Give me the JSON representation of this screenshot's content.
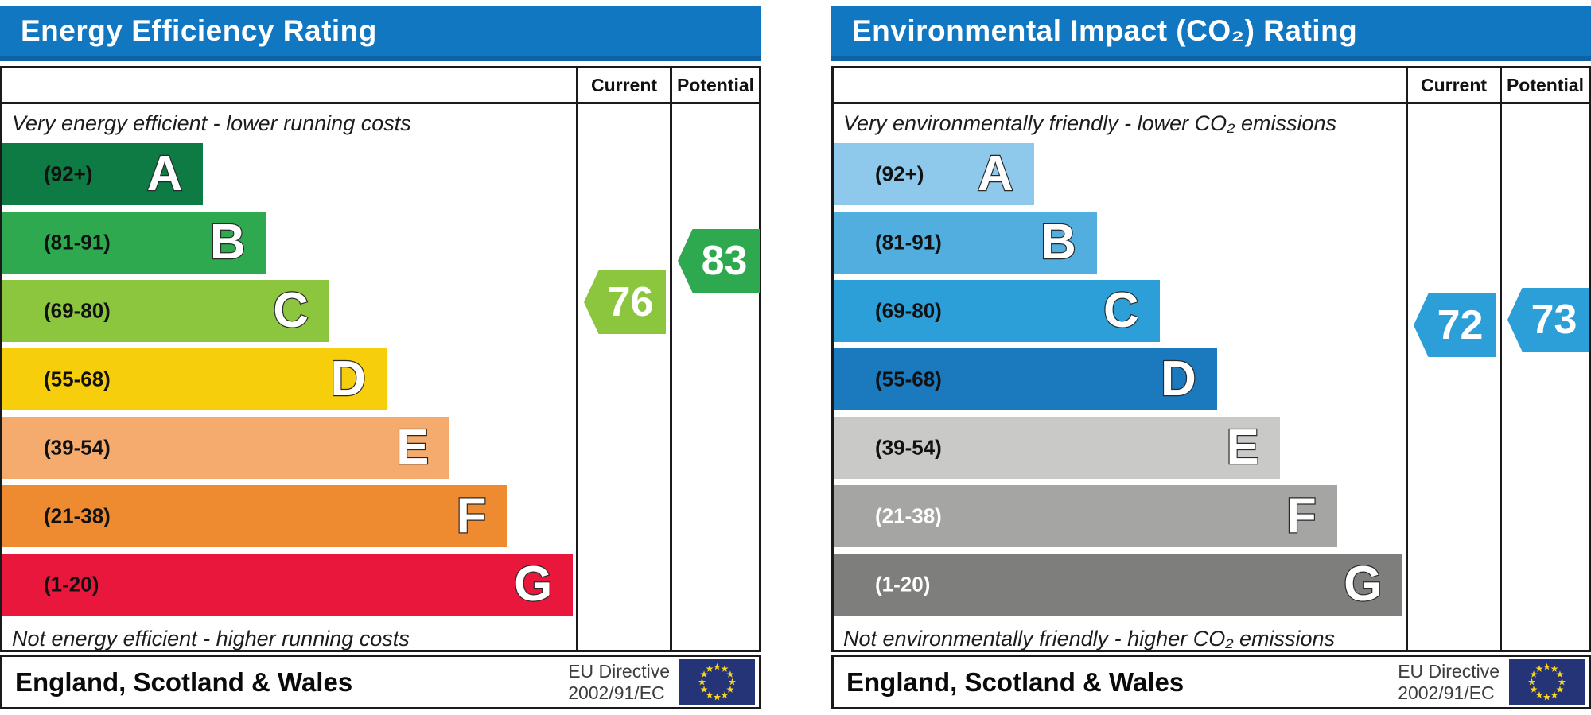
{
  "chart_data": [
    {
      "type": "bar",
      "title": "Energy Efficiency Rating",
      "orientation": "horizontal",
      "categories": [
        "A (92+)",
        "B (81-91)",
        "C (69-80)",
        "D (55-68)",
        "E (39-54)",
        "F (21-38)",
        "G (1-20)"
      ],
      "band_relative_widths_pct": [
        35,
        46,
        57,
        67,
        78,
        88,
        99.5
      ],
      "band_colors": [
        "#0e7a44",
        "#2fa94f",
        "#8cc63f",
        "#f7ce0b",
        "#f5ab6d",
        "#ee8b31",
        "#e9173c"
      ],
      "series": [
        {
          "name": "Current",
          "values": [
            76
          ],
          "band": "C",
          "marker_color": "#8cc63f"
        },
        {
          "name": "Potential",
          "values": [
            83
          ],
          "band": "B",
          "marker_color": "#2fa94f"
        }
      ],
      "scale_range": [
        1,
        100
      ],
      "top_annotation": "Very energy efficient - lower running costs",
      "bottom_annotation": "Not energy efficient - higher running costs",
      "footer": "England, Scotland & Wales",
      "directive": "EU Directive 2002/91/EC"
    },
    {
      "type": "bar",
      "title": "Environmental Impact (CO₂) Rating",
      "orientation": "horizontal",
      "categories": [
        "A (92+)",
        "B (81-91)",
        "C (69-80)",
        "D (55-68)",
        "E (39-54)",
        "F (21-38)",
        "G (1-20)"
      ],
      "band_relative_widths_pct": [
        35,
        46,
        57,
        67,
        78,
        88,
        99.5
      ],
      "band_colors": [
        "#8ec9ec",
        "#52aede",
        "#2c9fd9",
        "#1b79bd",
        "#c9c9c7",
        "#a5a5a3",
        "#7e7e7c"
      ],
      "series": [
        {
          "name": "Current",
          "values": [
            72
          ],
          "band": "C",
          "marker_color": "#2c9fd9"
        },
        {
          "name": "Potential",
          "values": [
            73
          ],
          "band": "C",
          "marker_color": "#2c9fd9"
        }
      ],
      "scale_range": [
        1,
        100
      ],
      "top_annotation": "Very environmentally friendly - lower CO₂ emissions",
      "bottom_annotation": "Not environmentally friendly - higher CO₂ emissions",
      "footer": "England, Scotland & Wales",
      "directive": "EU Directive 2002/91/EC"
    }
  ],
  "charts": [
    {
      "id": "energy-efficiency",
      "title": "Energy Efficiency Rating",
      "header_current": "Current",
      "header_potential": "Potential",
      "top_note": "Very energy efficient - lower running costs",
      "bottom_note": "Not energy efficient - higher running costs",
      "bands": [
        {
          "letter": "A",
          "range_label": "(92+)",
          "low": 92,
          "high": 100,
          "color": "#0e7a44",
          "width_pct": 35,
          "label_color": "#111111"
        },
        {
          "letter": "B",
          "range_label": "(81-91)",
          "low": 81,
          "high": 91,
          "color": "#2fa94f",
          "width_pct": 46,
          "label_color": "#111111"
        },
        {
          "letter": "C",
          "range_label": "(69-80)",
          "low": 69,
          "high": 80,
          "color": "#8cc63f",
          "width_pct": 57,
          "label_color": "#111111"
        },
        {
          "letter": "D",
          "range_label": "(55-68)",
          "low": 55,
          "high": 68,
          "color": "#f7ce0b",
          "width_pct": 67,
          "label_color": "#111111"
        },
        {
          "letter": "E",
          "range_label": "(39-54)",
          "low": 39,
          "high": 54,
          "color": "#f5ab6d",
          "width_pct": 78,
          "label_color": "#111111"
        },
        {
          "letter": "F",
          "range_label": "(21-38)",
          "low": 21,
          "high": 38,
          "color": "#ee8b31",
          "width_pct": 88,
          "label_color": "#111111"
        },
        {
          "letter": "G",
          "range_label": "(1-20)",
          "low": 1,
          "high": 20,
          "color": "#e9173c",
          "width_pct": 99.5,
          "label_color": "#111111"
        }
      ],
      "current": {
        "value": 76,
        "color": "#8cc63f"
      },
      "potential": {
        "value": 83,
        "color": "#2fa94f"
      },
      "footer": {
        "region": "England, Scotland & Wales",
        "directive_line1": "EU Directive",
        "directive_line2": "2002/91/EC"
      },
      "flag_colors": {
        "background": "#253477",
        "stars": "#f8d41c"
      }
    },
    {
      "id": "environmental-impact",
      "title": "Environmental Impact (CO₂) Rating",
      "header_current": "Current",
      "header_potential": "Potential",
      "top_note": "Very environmentally friendly - lower CO₂ emissions",
      "bottom_note": "Not environmentally friendly - higher CO₂ emissions",
      "bands": [
        {
          "letter": "A",
          "range_label": "(92+)",
          "low": 92,
          "high": 100,
          "color": "#8ec9ec",
          "width_pct": 35,
          "label_color": "#111111"
        },
        {
          "letter": "B",
          "range_label": "(81-91)",
          "low": 81,
          "high": 91,
          "color": "#52aede",
          "width_pct": 46,
          "label_color": "#111111"
        },
        {
          "letter": "C",
          "range_label": "(69-80)",
          "low": 69,
          "high": 80,
          "color": "#2c9fd9",
          "width_pct": 57,
          "label_color": "#111111"
        },
        {
          "letter": "D",
          "range_label": "(55-68)",
          "low": 55,
          "high": 68,
          "color": "#1b79bd",
          "width_pct": 67,
          "label_color": "#111111"
        },
        {
          "letter": "E",
          "range_label": "(39-54)",
          "low": 39,
          "high": 54,
          "color": "#c9c9c7",
          "width_pct": 78,
          "label_color": "#111111"
        },
        {
          "letter": "F",
          "range_label": "(21-38)",
          "low": 21,
          "high": 38,
          "color": "#a5a5a3",
          "width_pct": 88,
          "label_color": "#ffffff"
        },
        {
          "letter": "G",
          "range_label": "(1-20)",
          "low": 1,
          "high": 20,
          "color": "#7e7e7c",
          "width_pct": 99.5,
          "label_color": "#ffffff"
        }
      ],
      "current": {
        "value": 72,
        "color": "#2c9fd9"
      },
      "potential": {
        "value": 73,
        "color": "#2c9fd9"
      },
      "footer": {
        "region": "England, Scotland & Wales",
        "directive_line1": "EU Directive",
        "directive_line2": "2002/91/EC"
      },
      "flag_colors": {
        "background": "#253477",
        "stars": "#f8d41c"
      }
    }
  ],
  "accent_colors": {
    "title_bar": "#1177c0",
    "title_bar_edge": "#0d63a5",
    "table_border": "#1a1a1a"
  }
}
